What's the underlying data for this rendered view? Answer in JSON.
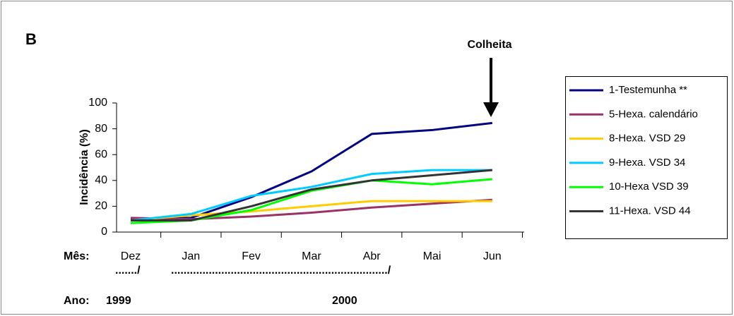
{
  "chart_data": {
    "type": "line",
    "panel_label": "B",
    "annotation": "Colheita",
    "y_label": "Incidência (%)",
    "x_label": "Mês:",
    "year_label": "Ano:",
    "years": [
      "1999",
      "2000"
    ],
    "year_separators": [
      "......./",
      "...................................................................../"
    ],
    "categories": [
      "Dez",
      "Jan",
      "Fev",
      "Mar",
      "Abr",
      "Mai",
      "Jun"
    ],
    "ylim": [
      0,
      100
    ],
    "yticks": [
      0,
      20,
      40,
      60,
      80,
      100
    ],
    "series": [
      {
        "name": "1-Testemunha **",
        "color": "#000080",
        "values": [
          10,
          11,
          27,
          47,
          76,
          79,
          84.5
        ]
      },
      {
        "name": "5-Hexa. calendário",
        "color": "#993366",
        "values": [
          11,
          10,
          12,
          15,
          19,
          22,
          25
        ]
      },
      {
        "name": "8-Hexa. VSD 29",
        "color": "#ffcc00",
        "values": [
          9,
          13,
          16,
          20,
          24,
          24,
          24
        ]
      },
      {
        "name": "9-Hexa. VSD 34",
        "color": "#00ccff",
        "values": [
          9,
          14,
          28,
          35,
          45,
          48,
          48
        ]
      },
      {
        "name": "10-Hexa VSD 39",
        "color": "#00ff00",
        "values": [
          7,
          9,
          17,
          32,
          40,
          37,
          41
        ]
      },
      {
        "name": "11-Hexa. VSD 44",
        "color": "#333333",
        "values": [
          9,
          9,
          20,
          33,
          40,
          44,
          48
        ]
      }
    ]
  }
}
